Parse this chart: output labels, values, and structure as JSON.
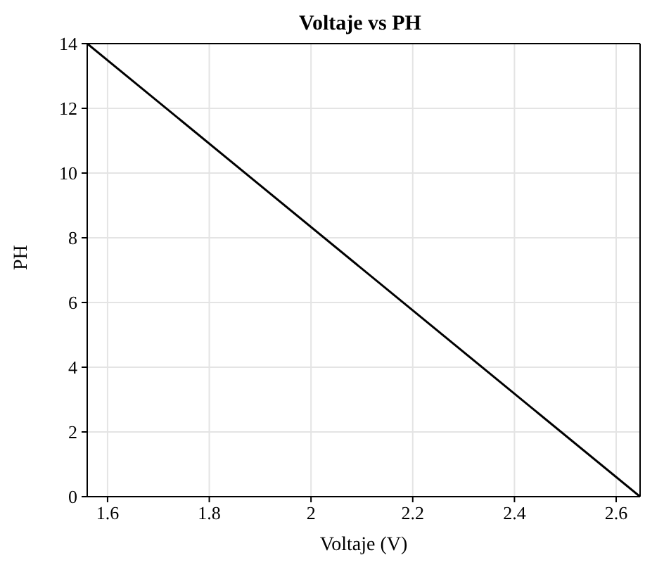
{
  "chart_data": {
    "type": "line",
    "title": "Voltaje vs PH",
    "xlabel": "Voltaje (V)",
    "ylabel": "PH",
    "x": [
      1.56,
      2.647
    ],
    "series": [
      {
        "color": "#000000",
        "values": [
          14,
          0
        ]
      }
    ],
    "xlim": [
      1.56,
      2.647
    ],
    "xticks": [
      1.6,
      1.8,
      2,
      2.2,
      2.4,
      2.6
    ],
    "ylim": [
      0,
      14
    ],
    "yticks": [
      0,
      2,
      4,
      6,
      8,
      10,
      12,
      14
    ],
    "grid": true,
    "marker": "none",
    "line_style": "solid",
    "legend": false
  }
}
